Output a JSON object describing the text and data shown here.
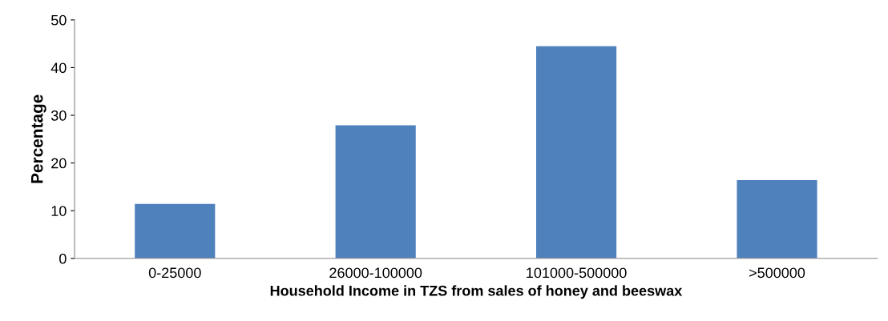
{
  "chart_data": {
    "type": "bar",
    "xlabel": "Household Income in TZS from sales of honey and beeswax",
    "ylabel": "Percentage",
    "categories": [
      "0-25000",
      "26000-100000",
      "101000-500000",
      ">500000"
    ],
    "values": [
      11.4,
      27.9,
      44.5,
      16.4
    ],
    "color": "#4f81bd",
    "ylim": [
      0,
      50
    ],
    "yticks": [
      0,
      10,
      20,
      30,
      40,
      50
    ],
    "grid": false,
    "legend": false
  }
}
